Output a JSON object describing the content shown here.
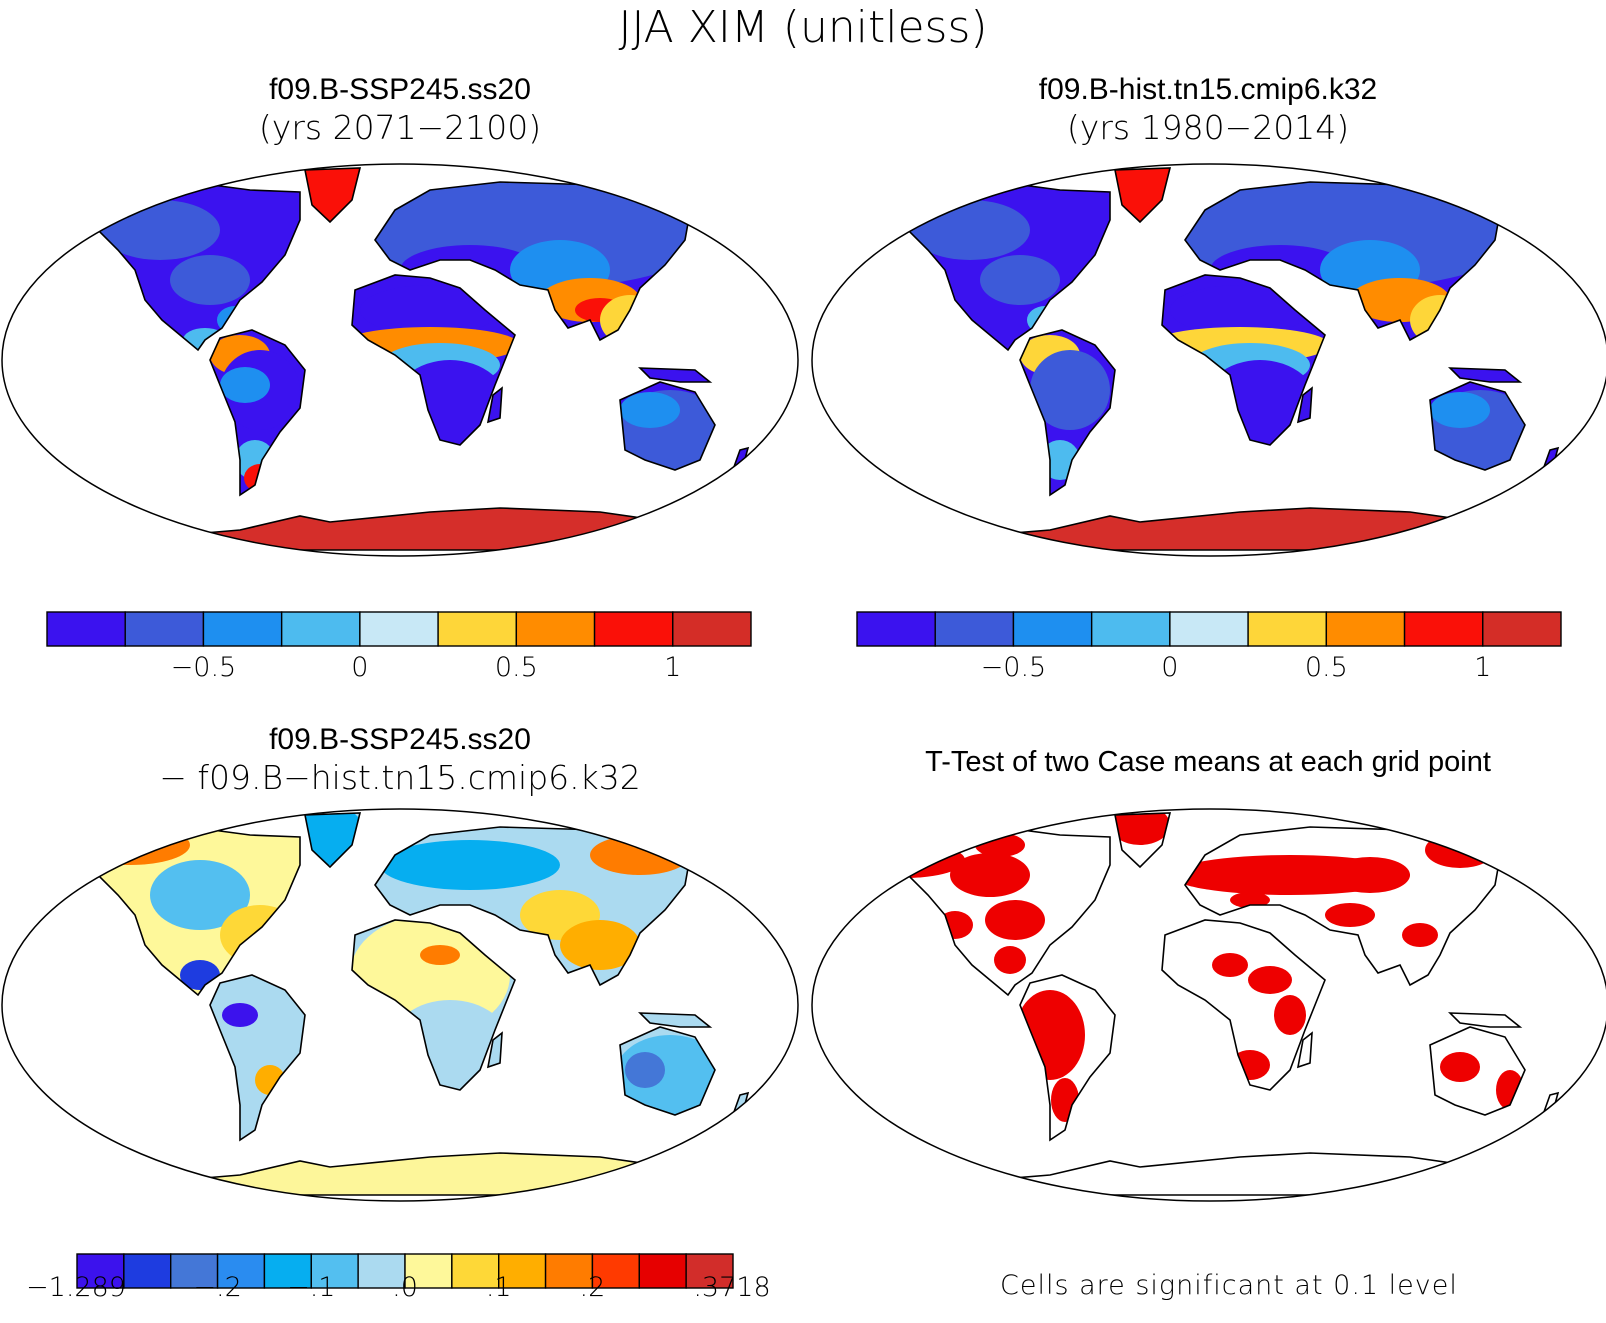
{
  "main_title": "JJA XIM (unitless)",
  "colors": {
    "cont_levels": [
      "#3b12ef",
      "#3d5ad9",
      "#1e8ff0",
      "#4dbbef",
      "#c8e8f6",
      "#fed639",
      "#ff8c00",
      "#fa1008",
      "#d42d27"
    ],
    "diff_levels": [
      "#3c12ed",
      "#1e3ce0",
      "#4477d7",
      "#2a8cf0",
      "#06aef0",
      "#53bff0",
      "#abdaf0",
      "#fef89a",
      "#fed837",
      "#ffae00",
      "#ff7c00",
      "#ff3a00",
      "#e60000",
      "#d22d2a"
    ],
    "ttest": "#ee0000",
    "antarctica_hot": "#d52e2a",
    "antarctica_diff": "#fdf69a"
  },
  "panels": {
    "future": {
      "title": "f09.B-SSP245.ss20",
      "subtitle": "(yrs 2071−2100)",
      "colorbar_ticks": [
        "−0.5",
        "0",
        "0.5",
        "1"
      ]
    },
    "historical": {
      "title": "f09.B-hist.tn15.cmip6.k32",
      "subtitle": "(yrs 1980−2014)",
      "colorbar_ticks": [
        "−0.5",
        "0",
        "0.5",
        "1"
      ]
    },
    "difference": {
      "title": "f09.B-SSP245.ss20",
      "subtitle": "− f09.B−hist.tn15.cmip6.k32",
      "colorbar_ticks": [
        "−1.289",
        "−.2",
        "−.1",
        ".0",
        ".1",
        ".2",
        ".3718"
      ]
    },
    "ttest": {
      "title": "T-Test of two Case means at each grid point",
      "note": "Cells are significant at 0.1 level"
    }
  }
}
